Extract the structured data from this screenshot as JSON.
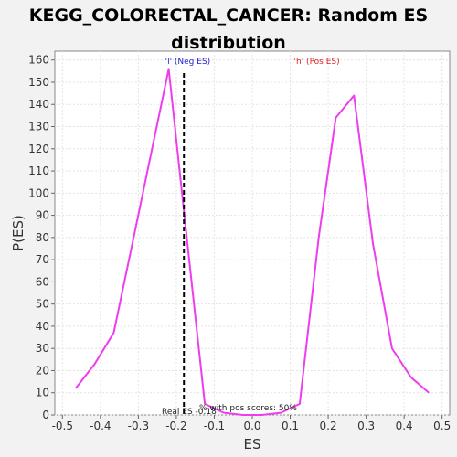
{
  "chart_data": {
    "type": "line",
    "title_line1": "KEGG_COLORECTAL_CANCER: Random ES",
    "title_line2": "distribution",
    "xlabel": "ES",
    "ylabel": "P(ES)",
    "xlim": [
      -0.52,
      0.52
    ],
    "ylim": [
      0,
      164
    ],
    "x_ticks": [
      -0.5,
      -0.4,
      -0.3,
      -0.2,
      -0.1,
      0.0,
      0.1,
      0.2,
      0.3,
      0.4,
      0.5
    ],
    "x_tick_labels": [
      "-0.5",
      "-0.4",
      "-0.3",
      "-0.2",
      "-0.1",
      "0.0",
      "0.1",
      "0.2",
      "0.3",
      "0.4",
      "0.5"
    ],
    "y_ticks": [
      0,
      10,
      20,
      30,
      40,
      50,
      60,
      70,
      80,
      90,
      100,
      110,
      120,
      130,
      140,
      150,
      160
    ],
    "y_tick_labels": [
      "0",
      "10",
      "20",
      "30",
      "40",
      "50",
      "60",
      "70",
      "80",
      "90",
      "100",
      "110",
      "120",
      "130",
      "140",
      "150",
      "160"
    ],
    "grid": true,
    "series": [
      {
        "color": "#ee3cee",
        "x": [
          -0.465,
          -0.415,
          -0.365,
          -0.315,
          -0.265,
          -0.22,
          -0.175,
          -0.125,
          -0.075,
          -0.025,
          0.025,
          0.075,
          0.125,
          0.175,
          0.22,
          0.268,
          0.318,
          0.368,
          0.418,
          0.465
        ],
        "y": [
          12,
          23,
          37,
          78,
          119,
          156,
          84,
          5,
          1,
          0,
          0,
          1,
          5,
          80,
          134,
          144,
          77,
          30,
          17,
          10
        ]
      }
    ],
    "real_es": -0.18,
    "neg_label": "'l' (Neg ES)",
    "pos_label": "'h' (Pos ES)",
    "real_es_label": "Real ES -0.18",
    "pos_scores_label": "% with pos scores: 50%",
    "neg_color": "#2222cc",
    "pos_color": "#dd2222"
  }
}
